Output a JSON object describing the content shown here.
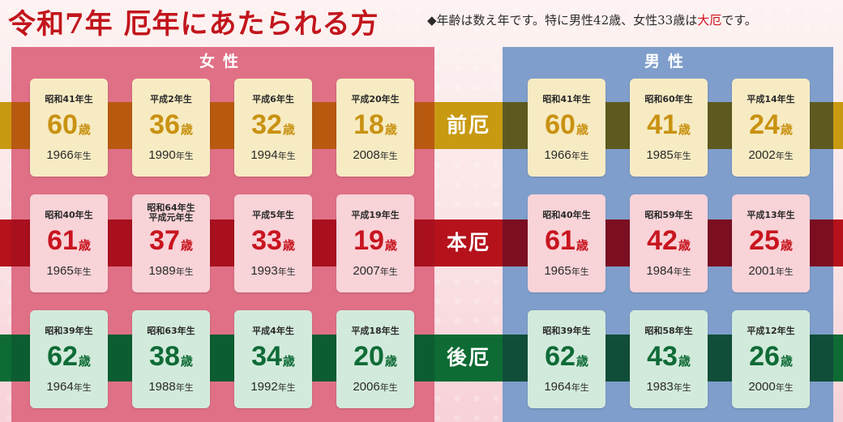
{
  "title": "令和7年 厄年にあたられる方",
  "note": {
    "prefix": "◆年齢は数え年です。特に男性42歳、女性33歳は",
    "highlight": "大厄",
    "suffix": "です。"
  },
  "labels": {
    "female": "女性",
    "male": "男性",
    "age_unit": "歳",
    "year_suffix": "年生"
  },
  "bands": {
    "mae": "前厄",
    "hon": "本厄",
    "ato": "後厄"
  },
  "colors": {
    "title_red": "#c2151c",
    "female_panel": "#df7086",
    "male_panel": "#7f9ecb",
    "mae_band": "#c89a12",
    "hon_band": "#b5121c",
    "ato_band": "#0d6b33"
  },
  "female": {
    "mae": [
      {
        "era": "昭和41年生",
        "age": "60",
        "year": "1966"
      },
      {
        "era": "平成2年生",
        "age": "36",
        "year": "1990"
      },
      {
        "era": "平成6年生",
        "age": "32",
        "year": "1994"
      },
      {
        "era": "平成20年生",
        "age": "18",
        "year": "2008"
      }
    ],
    "hon": [
      {
        "era": "昭和40年生",
        "age": "61",
        "year": "1965"
      },
      {
        "era": "昭和64年生",
        "era2": "平成元年生",
        "age": "37",
        "year": "1989"
      },
      {
        "era": "平成5年生",
        "age": "33",
        "year": "1993"
      },
      {
        "era": "平成19年生",
        "age": "19",
        "year": "2007"
      }
    ],
    "ato": [
      {
        "era": "昭和39年生",
        "age": "62",
        "year": "1964"
      },
      {
        "era": "昭和63年生",
        "age": "38",
        "year": "1988"
      },
      {
        "era": "平成4年生",
        "age": "34",
        "year": "1992"
      },
      {
        "era": "平成18年生",
        "age": "20",
        "year": "2006"
      }
    ]
  },
  "male": {
    "mae": [
      {
        "era": "昭和41年生",
        "age": "60",
        "year": "1966"
      },
      {
        "era": "昭和60年生",
        "age": "41",
        "year": "1985"
      },
      {
        "era": "平成14年生",
        "age": "24",
        "year": "2002"
      }
    ],
    "hon": [
      {
        "era": "昭和40年生",
        "age": "61",
        "year": "1965"
      },
      {
        "era": "昭和59年生",
        "age": "42",
        "year": "1984"
      },
      {
        "era": "平成13年生",
        "age": "25",
        "year": "2001"
      }
    ],
    "ato": [
      {
        "era": "昭和39年生",
        "age": "62",
        "year": "1964"
      },
      {
        "era": "昭和58年生",
        "age": "43",
        "year": "1983"
      },
      {
        "era": "平成12年生",
        "age": "26",
        "year": "2000"
      }
    ]
  }
}
